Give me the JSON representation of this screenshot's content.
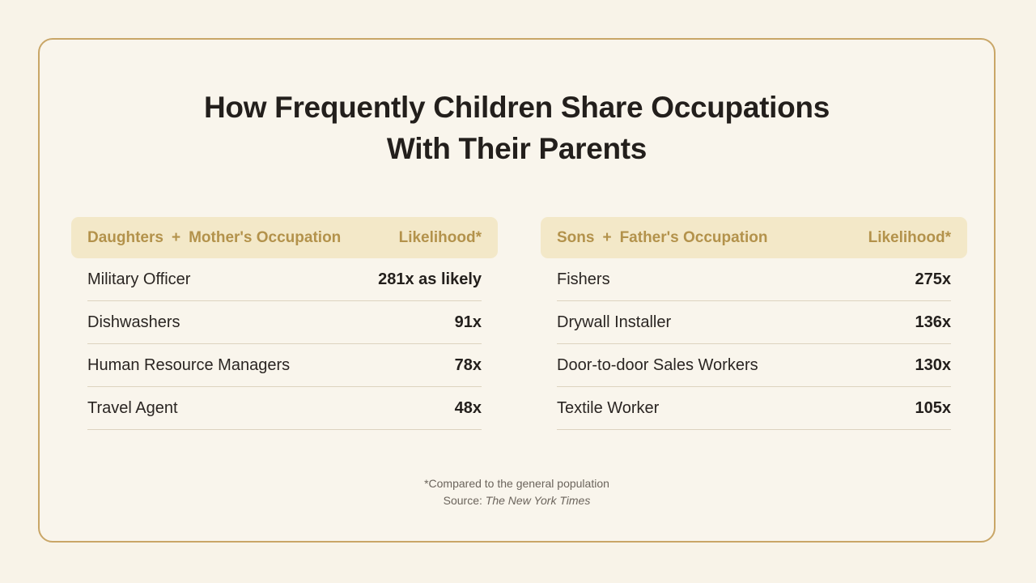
{
  "title": {
    "line1": "How Frequently Children Share Occupations",
    "line2": "With Their Parents"
  },
  "tables": [
    {
      "header": {
        "group_a": "Daughters",
        "plus": "+",
        "group_b": "Mother's Occupation",
        "metric": "Likelihood*"
      },
      "rows": [
        {
          "occupation": "Military Officer",
          "value": "281x as likely"
        },
        {
          "occupation": "Dishwashers",
          "value": "91x"
        },
        {
          "occupation": "Human Resource Managers",
          "value": "78x"
        },
        {
          "occupation": "Travel Agent",
          "value": "48x"
        }
      ]
    },
    {
      "header": {
        "group_a": "Sons",
        "plus": "+",
        "group_b": "Father's Occupation",
        "metric": "Likelihood*"
      },
      "rows": [
        {
          "occupation": "Fishers",
          "value": "275x"
        },
        {
          "occupation": "Drywall Installer",
          "value": "136x"
        },
        {
          "occupation": "Door-to-door Sales Workers",
          "value": "130x"
        },
        {
          "occupation": "Textile Worker",
          "value": "105x"
        }
      ]
    }
  ],
  "footer": {
    "note": "*Compared to the general population",
    "source_label": "Source: ",
    "source_name": "The New York Times"
  },
  "colors": {
    "background": "#f8f3e8",
    "border": "#c9a667",
    "header_fill": "#f3e8c8",
    "header_text": "#b3924b"
  }
}
